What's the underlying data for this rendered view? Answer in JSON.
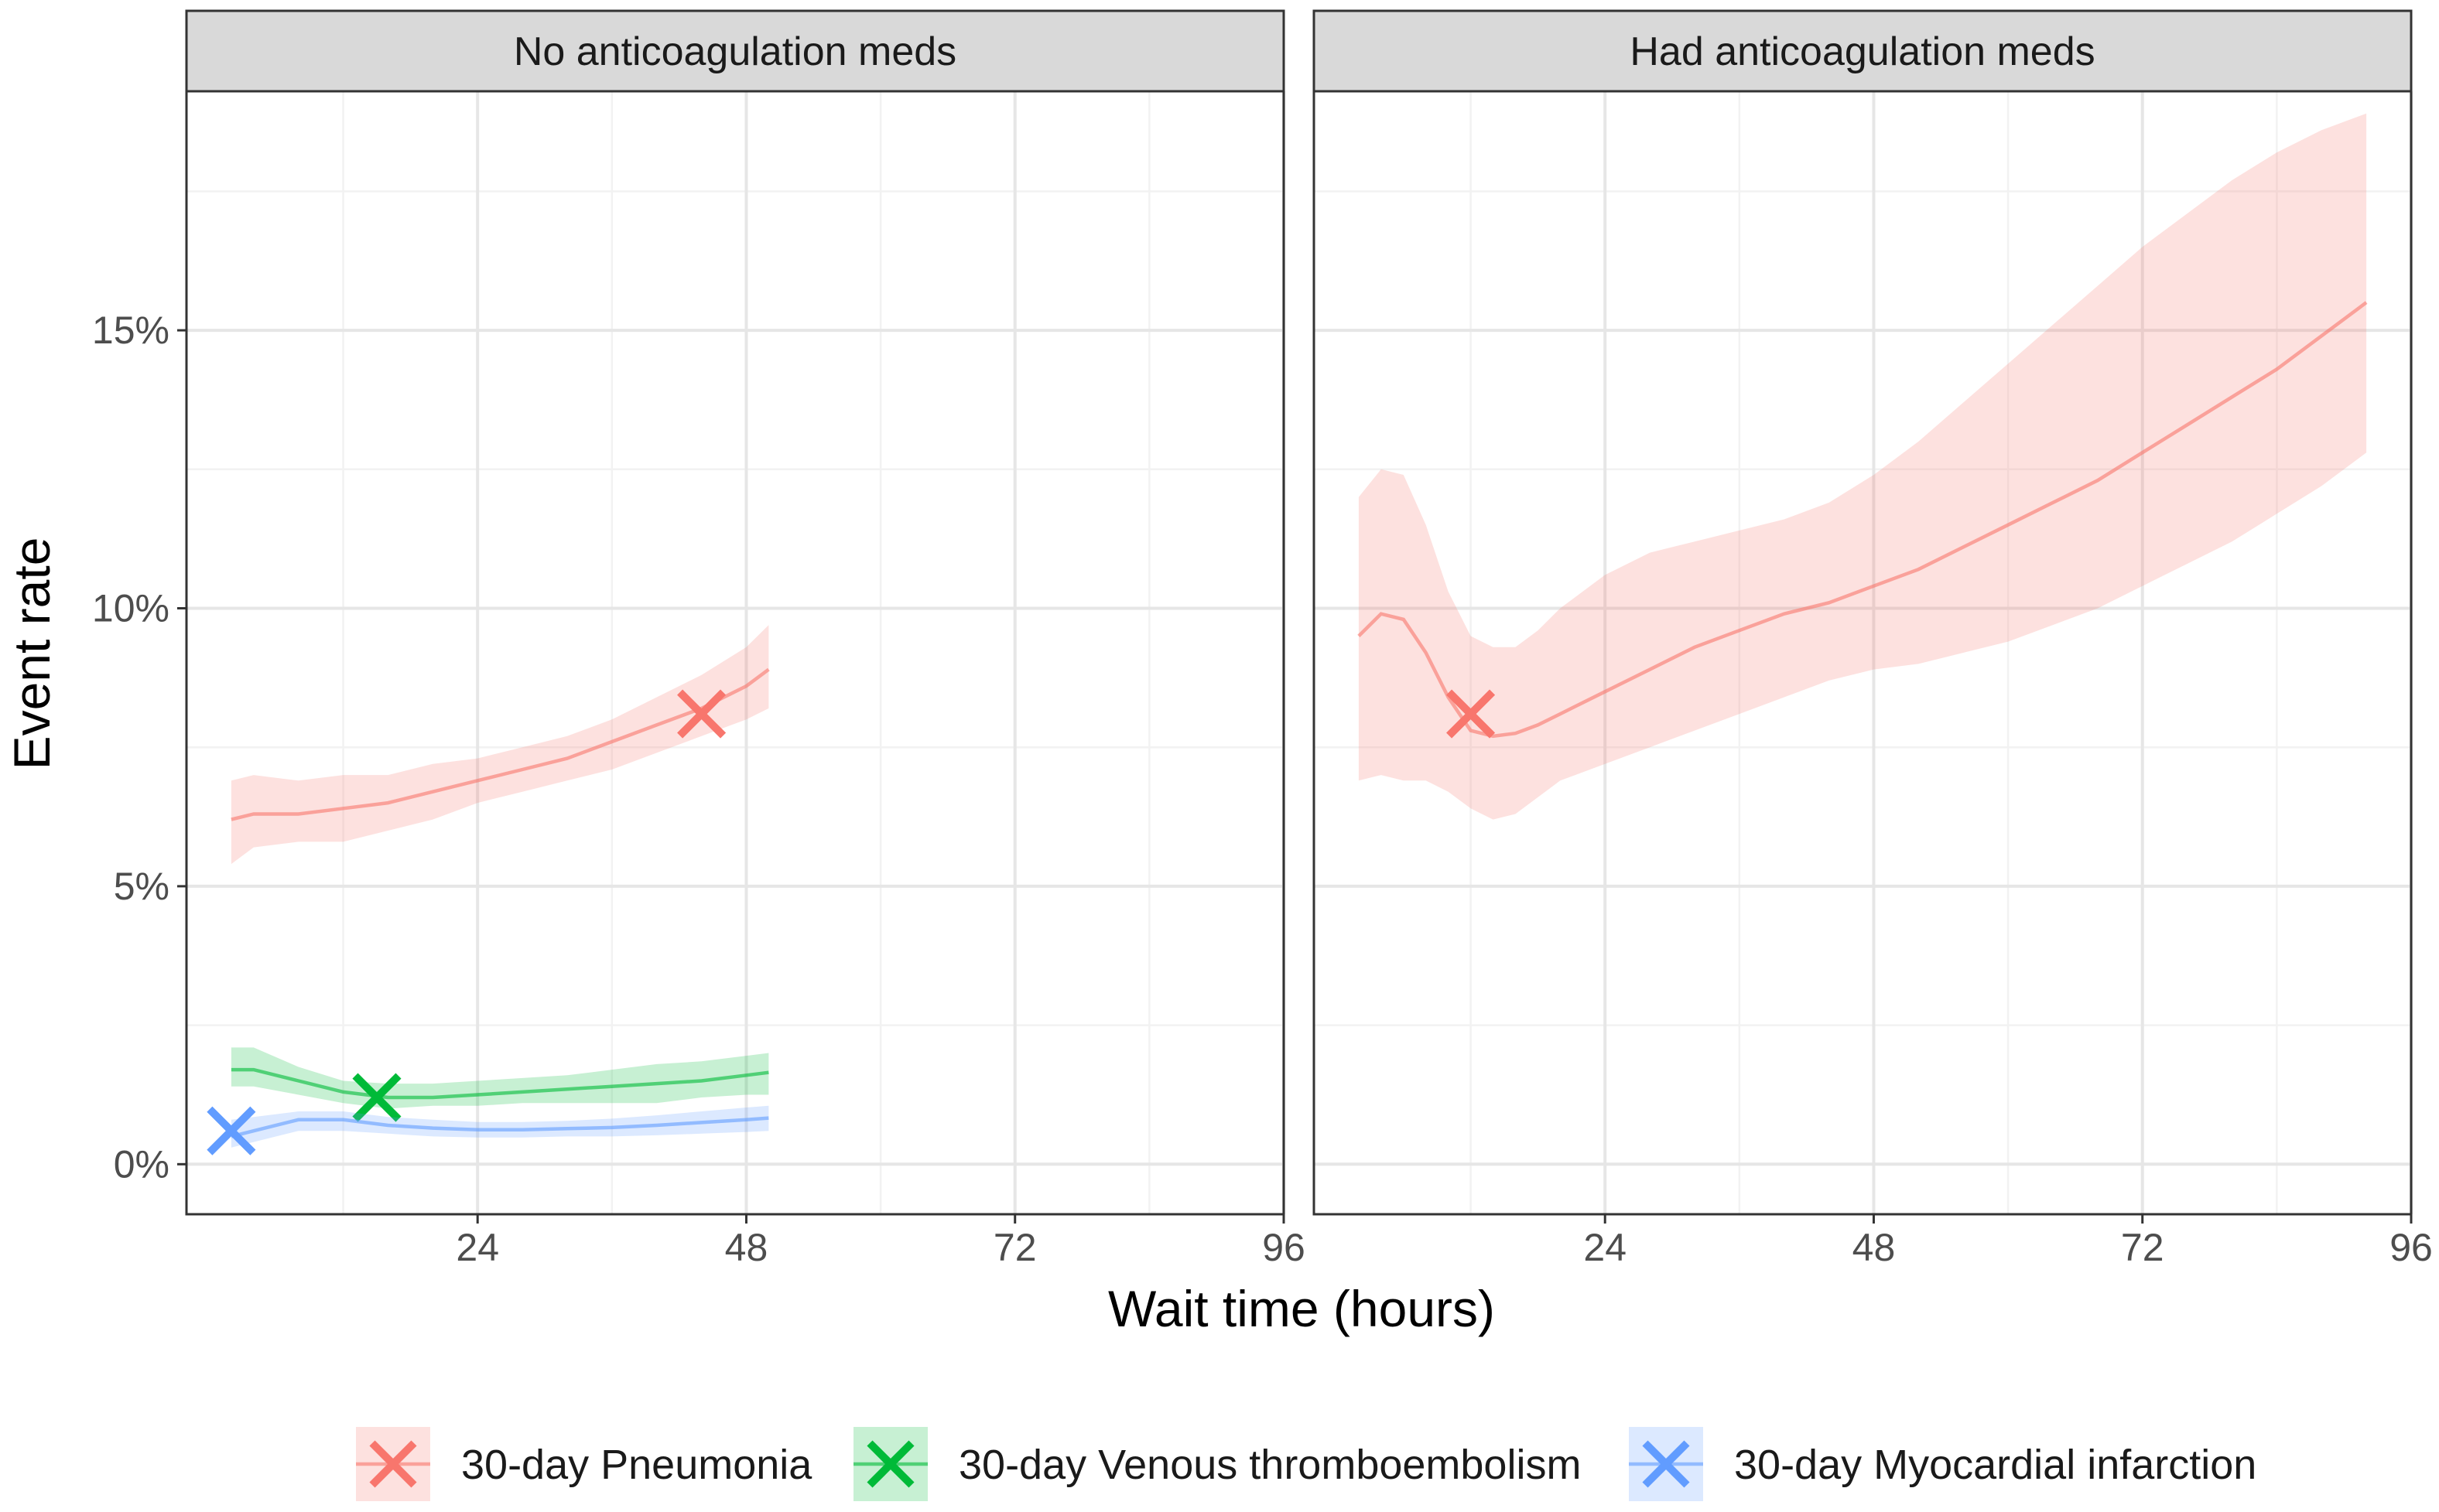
{
  "chart_data": {
    "type": "line",
    "xlabel": "Wait time (hours)",
    "ylabel": "Event rate",
    "xlim": [
      -2,
      96
    ],
    "ylim": [
      -0.9,
      19.3
    ],
    "x_ticks": [
      24,
      48,
      72,
      96
    ],
    "y_ticks": [
      0,
      5,
      10,
      15
    ],
    "y_tick_labels": [
      "0%",
      "5%",
      "10%",
      "15%"
    ],
    "grid": true,
    "legend_position": "bottom",
    "colors": {
      "pneumonia": "#F8766D",
      "vte": "#00BA38",
      "mi": "#619CFF",
      "strip_fill": "#D9D9D9",
      "panel_border": "#333333",
      "grid_major": "#E6E6E6",
      "grid_minor": "#F2F2F2"
    },
    "legend": [
      {
        "label": "30-day Pneumonia",
        "color": "#F8766D"
      },
      {
        "label": "30-day Venous thromboembolism",
        "color": "#00BA38"
      },
      {
        "label": "30-day Myocardial infarction",
        "color": "#619CFF"
      }
    ],
    "panels": [
      {
        "title": "No anticoagulation meds",
        "series": [
          {
            "key": "pneumonia",
            "x": [
              2,
              4,
              8,
              12,
              16,
              20,
              24,
              28,
              32,
              36,
              40,
              44,
              48,
              50
            ],
            "y": [
              6.2,
              6.3,
              6.3,
              6.4,
              6.5,
              6.7,
              6.9,
              7.1,
              7.3,
              7.6,
              7.9,
              8.2,
              8.6,
              8.9
            ],
            "lower": [
              5.4,
              5.7,
              5.8,
              5.8,
              6.0,
              6.2,
              6.5,
              6.7,
              6.9,
              7.1,
              7.4,
              7.7,
              8.0,
              8.2
            ],
            "upper": [
              6.9,
              7.0,
              6.9,
              7.0,
              7.0,
              7.2,
              7.3,
              7.5,
              7.7,
              8.0,
              8.4,
              8.8,
              9.3,
              9.7
            ],
            "marker": {
              "x": 44,
              "y": 8.1
            }
          },
          {
            "key": "vte",
            "x": [
              2,
              4,
              8,
              12,
              16,
              20,
              24,
              28,
              32,
              36,
              40,
              44,
              48,
              50
            ],
            "y": [
              1.7,
              1.7,
              1.5,
              1.3,
              1.2,
              1.2,
              1.25,
              1.3,
              1.35,
              1.4,
              1.45,
              1.5,
              1.6,
              1.65
            ],
            "lower": [
              1.4,
              1.4,
              1.25,
              1.1,
              1.0,
              1.05,
              1.05,
              1.1,
              1.1,
              1.1,
              1.1,
              1.2,
              1.25,
              1.25
            ],
            "upper": [
              2.1,
              2.1,
              1.75,
              1.5,
              1.45,
              1.45,
              1.5,
              1.55,
              1.6,
              1.7,
              1.8,
              1.85,
              1.95,
              2.0
            ],
            "marker": {
              "x": 15,
              "y": 1.2
            }
          },
          {
            "key": "mi",
            "x": [
              2,
              4,
              8,
              12,
              16,
              20,
              24,
              28,
              32,
              36,
              40,
              44,
              48,
              50
            ],
            "y": [
              0.5,
              0.6,
              0.8,
              0.8,
              0.7,
              0.65,
              0.62,
              0.62,
              0.64,
              0.66,
              0.7,
              0.75,
              0.8,
              0.83
            ],
            "lower": [
              0.3,
              0.4,
              0.6,
              0.6,
              0.55,
              0.5,
              0.48,
              0.48,
              0.5,
              0.5,
              0.52,
              0.55,
              0.58,
              0.6
            ],
            "upper": [
              0.8,
              0.85,
              0.95,
              0.95,
              0.85,
              0.8,
              0.76,
              0.76,
              0.78,
              0.82,
              0.88,
              0.95,
              1.02,
              1.05
            ],
            "marker": {
              "x": 2,
              "y": 0.6
            }
          }
        ]
      },
      {
        "title": "Had anticoagulation meds",
        "series": [
          {
            "key": "pneumonia",
            "x": [
              2,
              4,
              6,
              8,
              10,
              12,
              14,
              16,
              18,
              20,
              24,
              28,
              32,
              36,
              40,
              44,
              48,
              52,
              56,
              60,
              64,
              68,
              72,
              76,
              80,
              84,
              88,
              92
            ],
            "y": [
              9.5,
              9.9,
              9.8,
              9.2,
              8.4,
              7.8,
              7.7,
              7.75,
              7.9,
              8.1,
              8.5,
              8.9,
              9.3,
              9.6,
              9.9,
              10.1,
              10.4,
              10.7,
              11.1,
              11.5,
              11.9,
              12.3,
              12.8,
              13.3,
              13.8,
              14.3,
              14.9,
              15.5
            ],
            "lower": [
              6.9,
              7.0,
              6.9,
              6.9,
              6.7,
              6.4,
              6.2,
              6.3,
              6.6,
              6.9,
              7.2,
              7.5,
              7.8,
              8.1,
              8.4,
              8.7,
              8.9,
              9.0,
              9.2,
              9.4,
              9.7,
              10.0,
              10.4,
              10.8,
              11.2,
              11.7,
              12.2,
              12.8
            ],
            "upper": [
              12.0,
              12.5,
              12.4,
              11.5,
              10.3,
              9.5,
              9.3,
              9.3,
              9.6,
              10.0,
              10.6,
              11.0,
              11.2,
              11.4,
              11.6,
              11.9,
              12.4,
              13.0,
              13.7,
              14.4,
              15.1,
              15.8,
              16.5,
              17.1,
              17.7,
              18.2,
              18.6,
              18.9
            ],
            "marker": {
              "x": 12,
              "y": 8.1
            }
          }
        ]
      }
    ]
  }
}
